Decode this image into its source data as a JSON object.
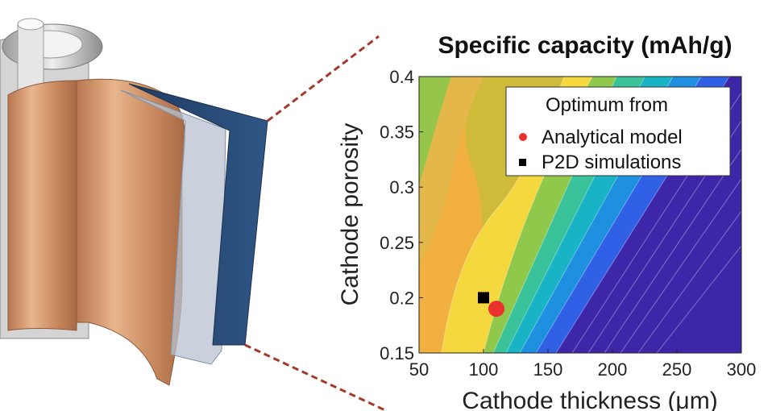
{
  "chart_data": {
    "type": "contour",
    "title": "Specific capacity (mAh/g)",
    "xlabel": "Cathode thickness (μm)",
    "ylabel": "Cathode porosity",
    "xlim": [
      50,
      300
    ],
    "ylim": [
      0.15,
      0.4
    ],
    "xticks": [
      "50",
      "100",
      "150",
      "200",
      "250",
      "300"
    ],
    "yticks": [
      "0.15",
      "0.2",
      "0.25",
      "0.3",
      "0.35",
      "0.4"
    ],
    "legend": {
      "title": "Optimum from",
      "entries": [
        "Analytical model",
        "P2D simulations"
      ],
      "position": "top-right"
    },
    "optima": [
      {
        "name": "Analytical model",
        "x": 110,
        "y": 0.19,
        "marker": "circle",
        "color": "#e8322b"
      },
      {
        "name": "P2D simulations",
        "x": 100,
        "y": 0.2,
        "marker": "square",
        "color": "#000000"
      }
    ],
    "colormap": "parula",
    "grid": false
  },
  "colors": {
    "battery_copper": "#d9a074",
    "battery_separator": "#b8c2d0",
    "battery_electrode": "#2f4f78",
    "callout_line": "#a33a2a"
  }
}
